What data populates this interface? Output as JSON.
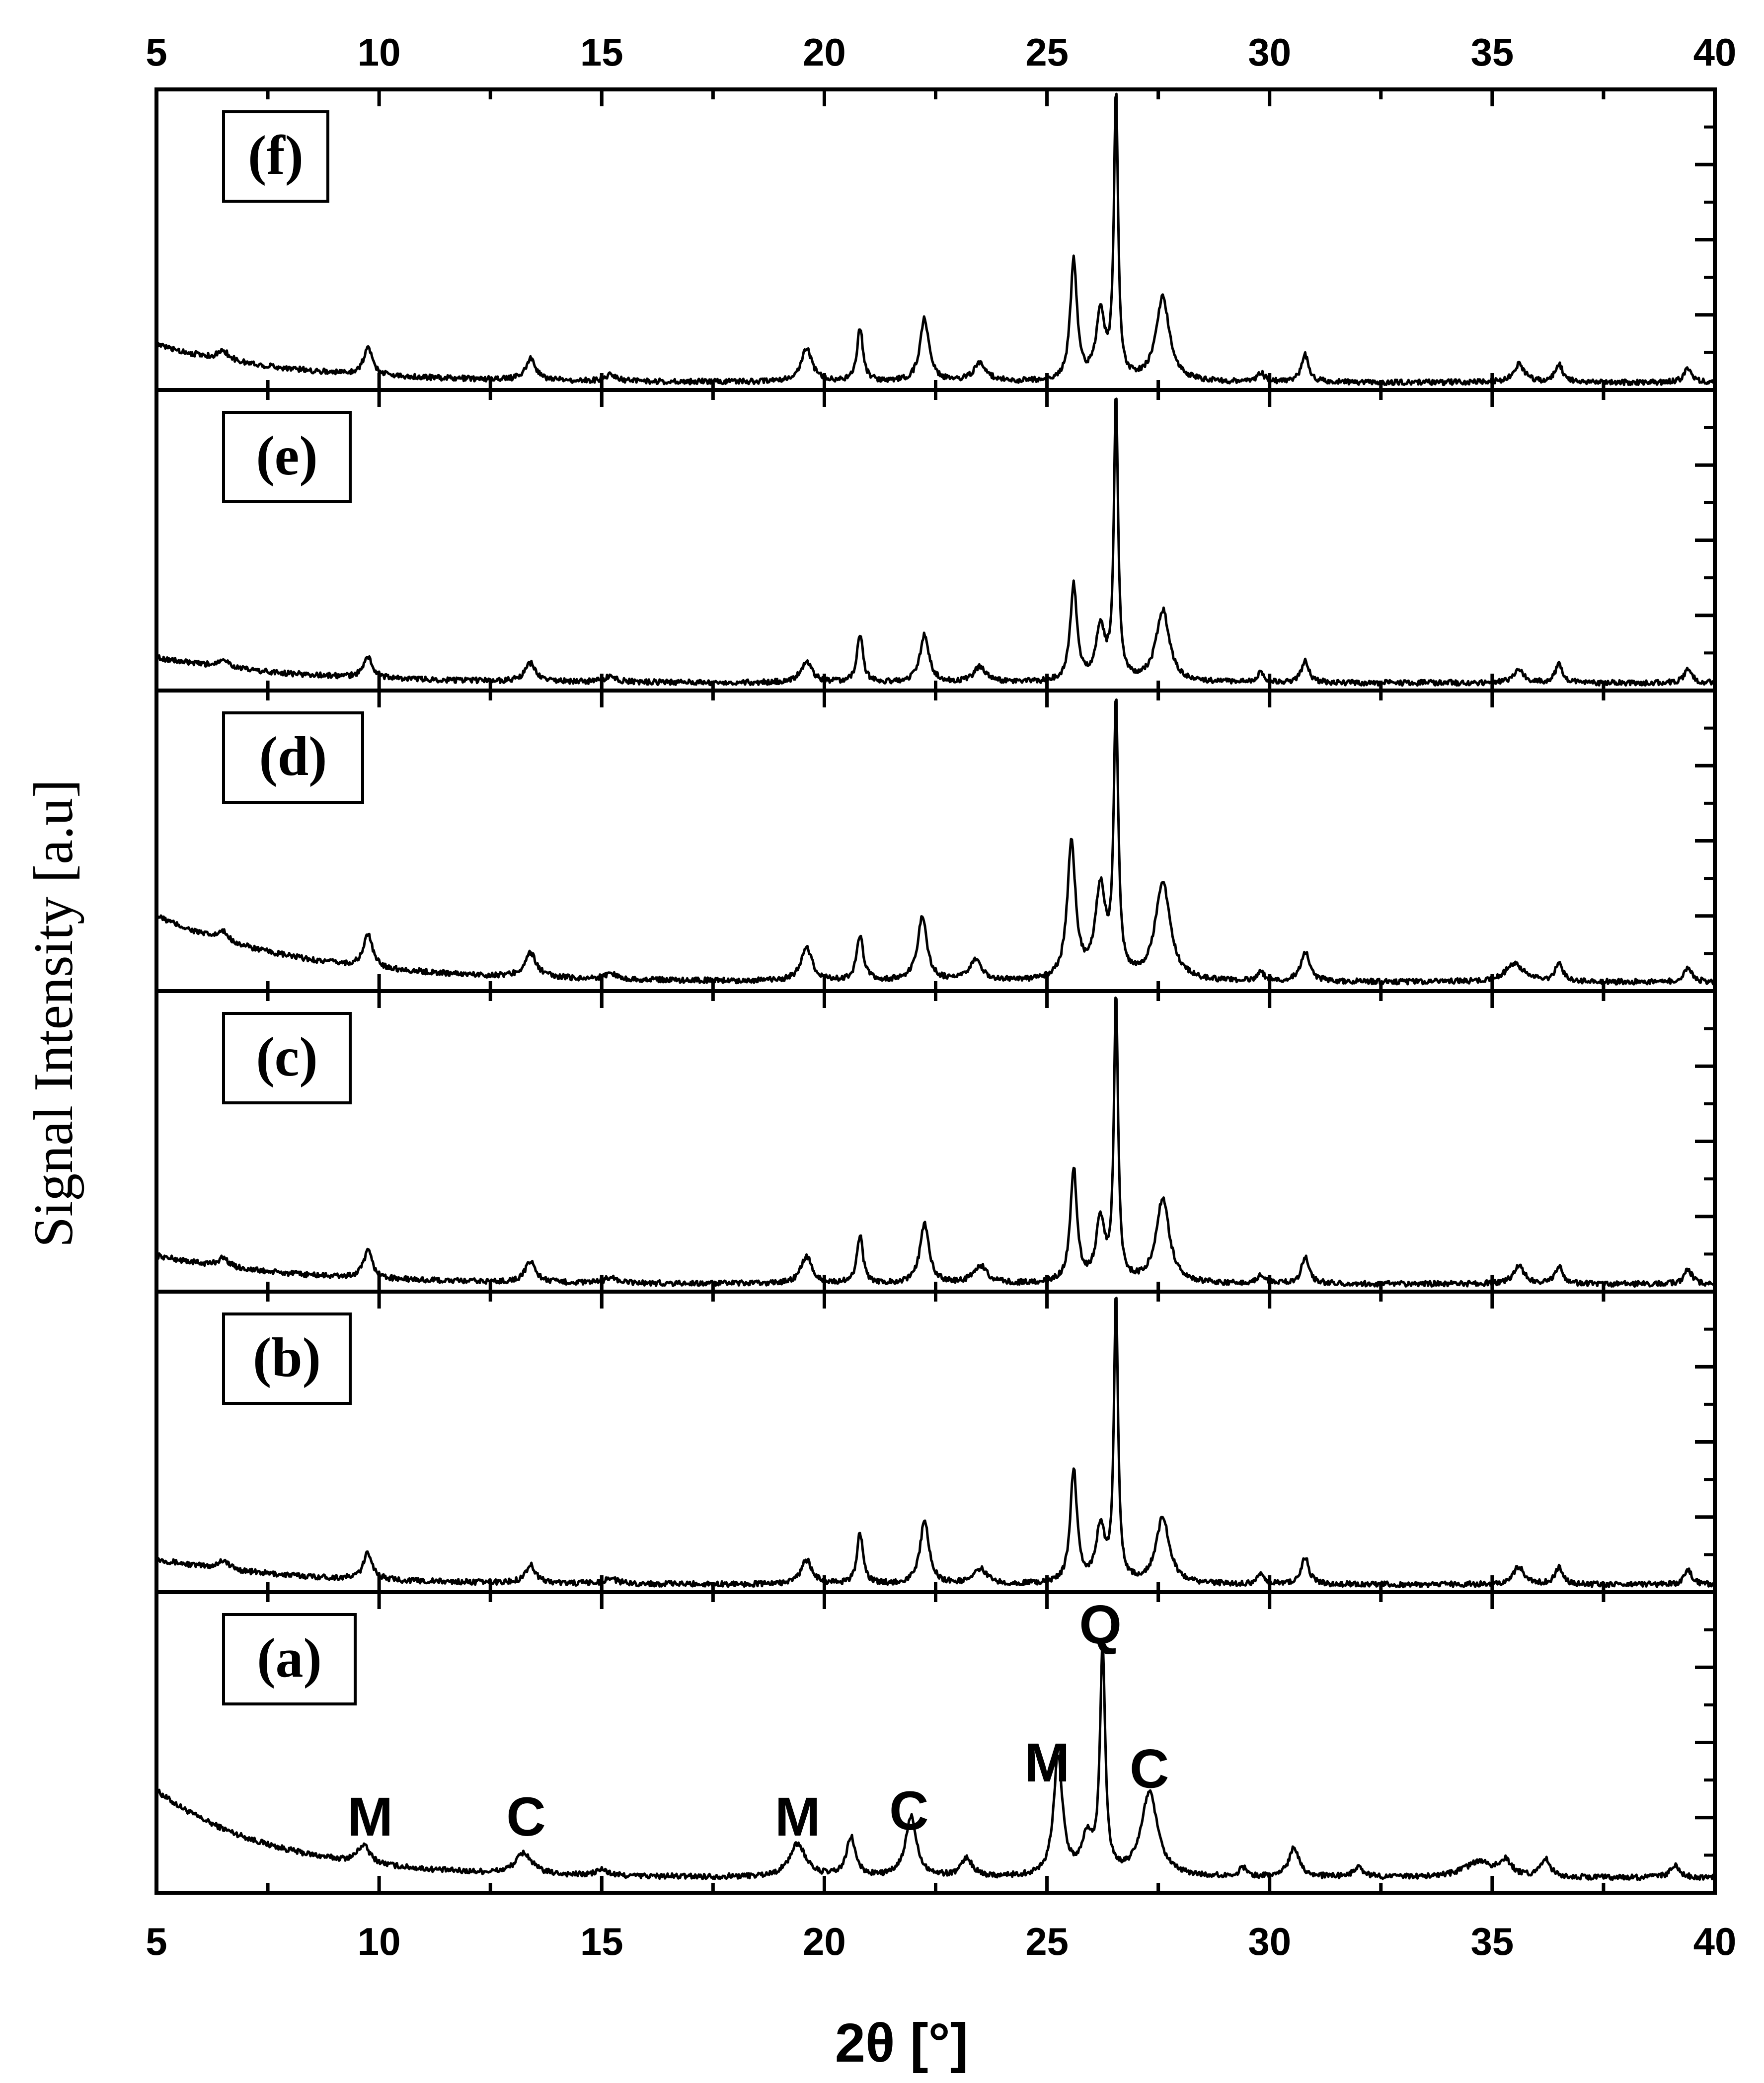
{
  "chart_data": {
    "type": "line",
    "title": "",
    "xlabel": "2θ [°]",
    "ylabel": "Signal Intensity [a.u]",
    "xlim": [
      5,
      40
    ],
    "ylim": [
      0,
      1
    ],
    "x_ticks": [
      "5",
      "10",
      "15",
      "20",
      "25",
      "30",
      "35",
      "40"
    ],
    "x_tick_values": [
      5,
      10,
      15,
      20,
      25,
      30,
      35,
      40
    ],
    "panels": [
      {
        "label": "(a)",
        "baseline": {
          "start": 0.34,
          "decay": 2.6,
          "floor": 0.05
        },
        "peaks": [
          [
            9.65,
            0.06,
            0.17
          ],
          [
            13.25,
            0.07,
            0.22
          ],
          [
            15.0,
            0.02,
            0.15
          ],
          [
            19.4,
            0.11,
            0.22
          ],
          [
            20.6,
            0.13,
            0.12
          ],
          [
            21.95,
            0.2,
            0.15
          ],
          [
            23.2,
            0.06,
            0.15
          ],
          [
            25.25,
            0.4,
            0.12
          ],
          [
            25.9,
            0.12,
            0.15
          ],
          [
            26.25,
            0.75,
            0.07
          ],
          [
            27.3,
            0.28,
            0.22
          ],
          [
            29.4,
            0.03,
            0.1
          ],
          [
            30.55,
            0.1,
            0.14
          ],
          [
            32.0,
            0.03,
            0.15
          ],
          [
            34.7,
            0.05,
            0.4
          ],
          [
            35.3,
            0.05,
            0.15
          ],
          [
            36.2,
            0.06,
            0.12
          ],
          [
            39.1,
            0.04,
            0.12
          ]
        ],
        "annotations": [
          {
            "text": "M",
            "x": 9.8,
            "y": 0.19
          },
          {
            "text": "C",
            "x": 13.3,
            "y": 0.19
          },
          {
            "text": "M",
            "x": 19.4,
            "y": 0.19
          },
          {
            "text": "C",
            "x": 21.9,
            "y": 0.21
          },
          {
            "text": "M",
            "x": 25.0,
            "y": 0.37
          },
          {
            "text": "Q",
            "x": 26.2,
            "y": 0.83
          },
          {
            "text": "C",
            "x": 27.3,
            "y": 0.35
          }
        ]
      },
      {
        "label": "(b)",
        "baseline": {
          "start": 0.11,
          "decay": 3.0,
          "floor": 0.025
        },
        "peaks": [
          [
            6.5,
            0.03,
            0.15
          ],
          [
            9.75,
            0.09,
            0.12
          ],
          [
            13.4,
            0.06,
            0.14
          ],
          [
            15.2,
            0.02,
            0.15
          ],
          [
            19.6,
            0.08,
            0.15
          ],
          [
            20.8,
            0.17,
            0.08
          ],
          [
            22.25,
            0.21,
            0.12
          ],
          [
            23.5,
            0.05,
            0.18
          ],
          [
            25.6,
            0.38,
            0.09
          ],
          [
            26.2,
            0.18,
            0.12
          ],
          [
            26.55,
            0.95,
            0.055
          ],
          [
            27.6,
            0.22,
            0.18
          ],
          [
            29.8,
            0.03,
            0.1
          ],
          [
            30.8,
            0.09,
            0.1
          ],
          [
            35.6,
            0.06,
            0.15
          ],
          [
            36.5,
            0.06,
            0.1
          ],
          [
            39.4,
            0.05,
            0.1
          ]
        ],
        "annotations": []
      },
      {
        "label": "(c)",
        "baseline": {
          "start": 0.12,
          "decay": 3.0,
          "floor": 0.025
        },
        "peaks": [
          [
            6.5,
            0.03,
            0.15
          ],
          [
            9.75,
            0.09,
            0.12
          ],
          [
            13.4,
            0.07,
            0.14
          ],
          [
            15.2,
            0.02,
            0.15
          ],
          [
            19.6,
            0.09,
            0.15
          ],
          [
            20.8,
            0.16,
            0.08
          ],
          [
            22.25,
            0.2,
            0.12
          ],
          [
            23.5,
            0.06,
            0.18
          ],
          [
            25.6,
            0.38,
            0.09
          ],
          [
            26.2,
            0.2,
            0.12
          ],
          [
            26.55,
            0.95,
            0.055
          ],
          [
            27.6,
            0.28,
            0.18
          ],
          [
            29.8,
            0.03,
            0.1
          ],
          [
            30.8,
            0.09,
            0.1
          ],
          [
            35.6,
            0.06,
            0.15
          ],
          [
            36.5,
            0.06,
            0.1
          ],
          [
            39.4,
            0.05,
            0.1
          ]
        ],
        "annotations": []
      },
      {
        "label": "(d)",
        "baseline": {
          "start": 0.25,
          "decay": 3.2,
          "floor": 0.03
        },
        "peaks": [
          [
            6.5,
            0.03,
            0.15
          ],
          [
            9.75,
            0.11,
            0.12
          ],
          [
            13.4,
            0.08,
            0.16
          ],
          [
            15.2,
            0.02,
            0.15
          ],
          [
            19.6,
            0.11,
            0.15
          ],
          [
            20.8,
            0.15,
            0.09
          ],
          [
            22.2,
            0.21,
            0.13
          ],
          [
            23.4,
            0.07,
            0.16
          ],
          [
            25.55,
            0.46,
            0.11
          ],
          [
            26.2,
            0.3,
            0.14
          ],
          [
            26.55,
            0.9,
            0.06
          ],
          [
            27.6,
            0.33,
            0.2
          ],
          [
            29.8,
            0.03,
            0.1
          ],
          [
            30.8,
            0.1,
            0.12
          ],
          [
            35.5,
            0.06,
            0.25
          ],
          [
            36.5,
            0.06,
            0.1
          ],
          [
            39.4,
            0.05,
            0.1
          ]
        ],
        "annotations": []
      },
      {
        "label": "(e)",
        "baseline": {
          "start": 0.11,
          "decay": 3.0,
          "floor": 0.025
        },
        "peaks": [
          [
            6.5,
            0.03,
            0.15
          ],
          [
            9.75,
            0.07,
            0.12
          ],
          [
            13.4,
            0.06,
            0.14
          ],
          [
            15.2,
            0.02,
            0.15
          ],
          [
            19.6,
            0.07,
            0.15
          ],
          [
            20.8,
            0.16,
            0.08
          ],
          [
            22.25,
            0.16,
            0.12
          ],
          [
            23.5,
            0.05,
            0.18
          ],
          [
            25.6,
            0.32,
            0.09
          ],
          [
            26.2,
            0.18,
            0.12
          ],
          [
            26.55,
            0.95,
            0.055
          ],
          [
            27.6,
            0.24,
            0.18
          ],
          [
            29.8,
            0.03,
            0.1
          ],
          [
            30.8,
            0.07,
            0.1
          ],
          [
            35.6,
            0.04,
            0.15
          ],
          [
            36.5,
            0.06,
            0.1
          ],
          [
            39.4,
            0.05,
            0.1
          ]
        ],
        "annotations": []
      },
      {
        "label": "(f)",
        "baseline": {
          "start": 0.15,
          "decay": 3.0,
          "floor": 0.025
        },
        "peaks": [
          [
            6.5,
            0.03,
            0.15
          ],
          [
            9.75,
            0.09,
            0.12
          ],
          [
            13.4,
            0.07,
            0.14
          ],
          [
            15.2,
            0.02,
            0.15
          ],
          [
            19.6,
            0.11,
            0.15
          ],
          [
            20.8,
            0.18,
            0.08
          ],
          [
            22.25,
            0.21,
            0.12
          ],
          [
            23.5,
            0.06,
            0.18
          ],
          [
            25.6,
            0.4,
            0.09
          ],
          [
            26.2,
            0.22,
            0.12
          ],
          [
            26.55,
            0.95,
            0.055
          ],
          [
            27.6,
            0.28,
            0.18
          ],
          [
            29.8,
            0.03,
            0.1
          ],
          [
            30.8,
            0.09,
            0.1
          ],
          [
            35.6,
            0.06,
            0.15
          ],
          [
            36.5,
            0.06,
            0.1
          ],
          [
            39.4,
            0.05,
            0.1
          ]
        ],
        "annotations": []
      }
    ]
  }
}
